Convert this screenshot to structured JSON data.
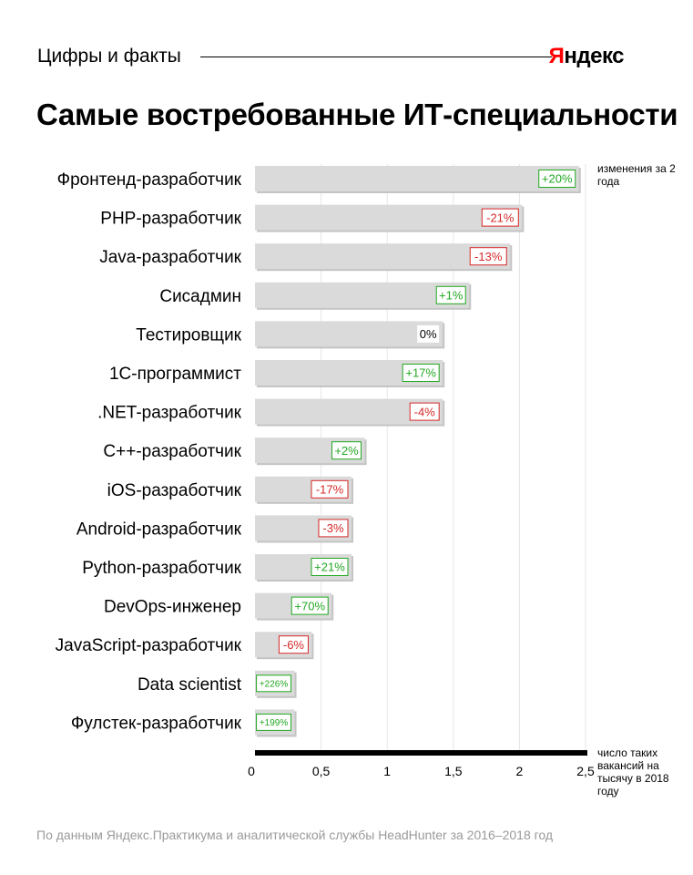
{
  "header": {
    "label": "Цифры и факты",
    "brand_first": "Я",
    "brand_rest": "ндекс"
  },
  "title": "Самые востребованные ИТ-специальности",
  "chart_data": {
    "type": "bar",
    "orientation": "horizontal",
    "categories": [
      "Фронтенд-разработчик",
      "PHP-разработчик",
      "Java-разработчик",
      "Сисадмин",
      "Тестировщик",
      "1С-программист",
      ".NET-разработчик",
      "С++-разработчик",
      "iOS-разработчик",
      "Android-разработчик",
      "Python-разработчик",
      "DevOps-инженер",
      "JavaScript-разработчик",
      "Data scientist",
      "Фулстек-разработчик"
    ],
    "values": [
      2.45,
      2.02,
      1.93,
      1.62,
      1.42,
      1.42,
      1.42,
      0.83,
      0.73,
      0.73,
      0.73,
      0.58,
      0.43,
      0.3,
      0.3
    ],
    "changes": [
      "+20%",
      "-21%",
      "-13%",
      "+1%",
      "0%",
      "+17%",
      "-4%",
      "+2%",
      "-17%",
      "-3%",
      "+21%",
      "+70%",
      "-6%",
      "+226%",
      "+199%"
    ],
    "xlim": [
      0,
      2.5
    ],
    "xticks": [
      "0",
      "0,5",
      "1",
      "1,5",
      "2",
      "2,5"
    ],
    "xtick_values": [
      0,
      0.5,
      1,
      1.5,
      2,
      2.5
    ],
    "change_note": "изменения за 2 года",
    "axis_note": "число таких вакансий на тысячу в 2018 году",
    "grid": true,
    "colors": {
      "bar": "#dadada",
      "positive": "#22a822",
      "negative": "#d62828",
      "neutral": "#000000",
      "grid": "#e6e6e6"
    }
  },
  "footer": {
    "source": "По данным Яндекс.Практикума и аналитической службы HeadHunter за 2016–2018 год"
  }
}
